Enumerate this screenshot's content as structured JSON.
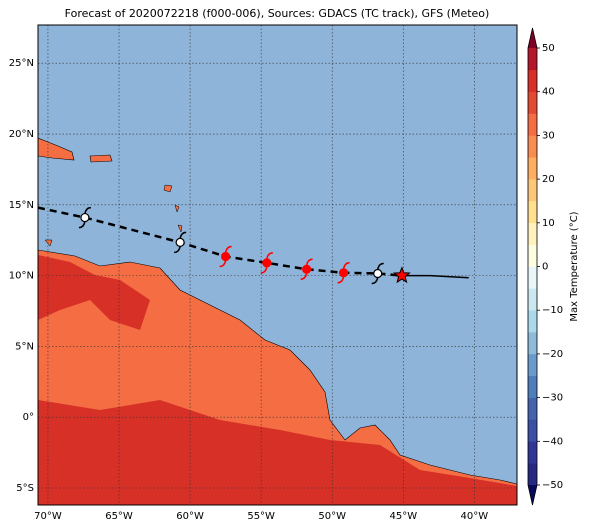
{
  "chart_data": {
    "type": "map",
    "title": "Forecast of 2020072218 (f000-006), Sources: GDACS (TC track), GFS (Meteo)",
    "xlim": [
      -70.7,
      -37.0
    ],
    "ylim": [
      -6.2,
      27.7
    ],
    "xticks": [
      {
        "value": -70,
        "label": "70°W"
      },
      {
        "value": -65,
        "label": "65°W"
      },
      {
        "value": -60,
        "label": "60°W"
      },
      {
        "value": -55,
        "label": "55°W"
      },
      {
        "value": -50,
        "label": "50°W"
      },
      {
        "value": -45,
        "label": "45°W"
      },
      {
        "value": -40,
        "label": "40°W"
      }
    ],
    "yticks": [
      {
        "value": -5,
        "label": "5°S"
      },
      {
        "value": 0,
        "label": "0°"
      },
      {
        "value": 5,
        "label": "5°N"
      },
      {
        "value": 10,
        "label": "10°N"
      },
      {
        "value": 15,
        "label": "15°N"
      },
      {
        "value": 20,
        "label": "20°N"
      },
      {
        "value": 25,
        "label": "25°N"
      }
    ],
    "grid": true,
    "forecast_track": {
      "lon": [
        -70.7,
        -67.4,
        -60.7,
        -57.5,
        -54.6,
        -51.8,
        -49.2,
        -46.8,
        -45.1
      ],
      "lat": [
        14.8,
        14.1,
        12.35,
        11.35,
        10.9,
        10.45,
        10.2,
        10.15,
        10.0
      ],
      "marker_colors": [
        null,
        "#ffffff",
        "#ffffff",
        "#ff0000",
        "#ff0000",
        "#ff0000",
        "#ff0000",
        "#ffffff",
        "#ff0000"
      ]
    },
    "observed_track": {
      "lon": [
        -45.1,
        -43.1,
        -40.4
      ],
      "lat": [
        10.0,
        10.0,
        9.85
      ]
    },
    "colorbar": {
      "label": "Max Temperature (°C)",
      "lim": [
        -50,
        50
      ],
      "ticks": [
        {
          "value": -50,
          "label": "−50"
        },
        {
          "value": -40,
          "label": "−40"
        },
        {
          "value": -30,
          "label": "−30"
        },
        {
          "value": -20,
          "label": "−20"
        },
        {
          "value": -10,
          "label": "−10"
        },
        0,
        10,
        20,
        30,
        40,
        50
      ],
      "colors": [
        "#27287f",
        "#313695",
        "#3b4fa3",
        "#4563ad",
        "#4f7fba",
        "#6a9ccb",
        "#8fbad9",
        "#abd9e9",
        "#cbe8f1",
        "#e8f6f9",
        "#fdfde0",
        "#fff2bd",
        "#fee090",
        "#fdc77a",
        "#fdae61",
        "#f88d52",
        "#f46d43",
        "#e34a33",
        "#d73027",
        "#b4172a"
      ],
      "extend_colors": [
        "#0a0a5c",
        "#800026"
      ]
    }
  }
}
